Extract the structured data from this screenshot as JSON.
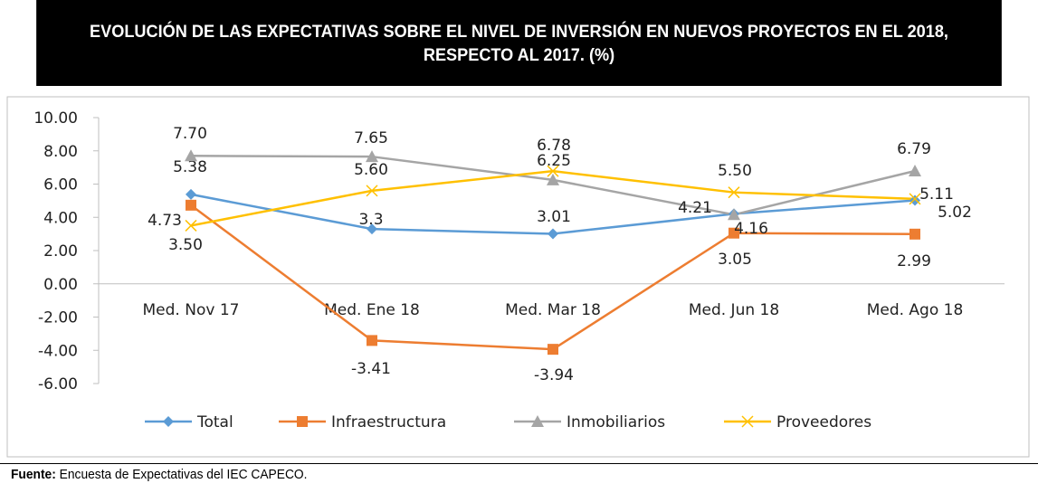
{
  "chart_data": {
    "type": "line",
    "title": "EVOLUCIÓN DE LAS EXPECTATIVAS SOBRE EL NIVEL DE INVERSIÓN EN NUEVOS PROYECTOS EN EL 2018, RESPECTO AL 2017. (%)",
    "title_line1": "EVOLUCIÓN DE LAS EXPECTATIVAS SOBRE EL NIVEL DE INVERSIÓN EN NUEVOS PROYECTOS EN EL 2018,",
    "title_line2": "RESPECTO AL 2017. (%)",
    "categories": [
      "Med. Nov 17",
      "Med. Ene 18",
      "Med. Mar 18",
      "Med. Jun 18",
      "Med. Ago 18"
    ],
    "ylim": [
      -6,
      10
    ],
    "yticks": [
      "10.00",
      "8.00",
      "6.00",
      "4.00",
      "2.00",
      "0.00",
      "-2.00",
      "-4.00",
      "-6.00"
    ],
    "grid": false,
    "legend": "bottom",
    "series": [
      {
        "name": "Total",
        "color": "#5B9BD5",
        "marker": "diamond",
        "values": [
          5.38,
          3.3,
          3.01,
          4.21,
          5.02
        ],
        "labels": [
          "5.38",
          "3.3",
          "3.01",
          "4.21",
          "5.02"
        ]
      },
      {
        "name": "Infraestructura",
        "color": "#ED7D31",
        "marker": "square",
        "values": [
          4.73,
          -3.41,
          -3.94,
          3.05,
          2.99
        ],
        "labels": [
          "4.73",
          "-3.41",
          "-3.94",
          "3.05",
          "2.99"
        ]
      },
      {
        "name": "Inmobiliarios",
        "color": "#A5A5A5",
        "marker": "triangle",
        "values": [
          7.7,
          7.65,
          6.25,
          4.16,
          6.79
        ],
        "labels": [
          "7.70",
          "7.65",
          "6.25",
          "4.16",
          "6.79"
        ]
      },
      {
        "name": "Proveedores",
        "color": "#FFC000",
        "marker": "x",
        "values": [
          3.5,
          5.6,
          6.78,
          5.5,
          5.11
        ],
        "labels": [
          "3.50",
          "5.60",
          "6.78",
          "5.50",
          "5.11"
        ]
      }
    ]
  },
  "footer": {
    "label": "Fuente:",
    "text": " Encuesta de Expectativas del IEC CAPECO."
  }
}
